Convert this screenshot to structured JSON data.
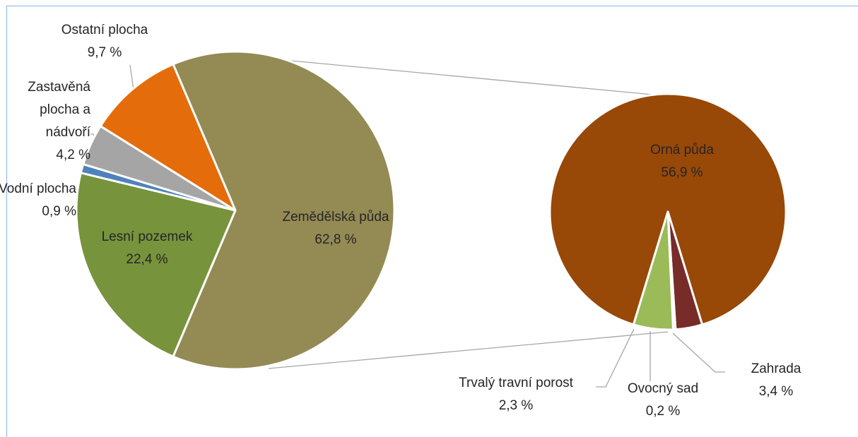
{
  "chart_data": [
    {
      "type": "pie",
      "categories": [
        "Zemědělská půda",
        "Lesní pozemek",
        "Vodní plocha",
        "Zastavěná plocha a nádvoří",
        "Ostatní plocha"
      ],
      "values": [
        62.8,
        22.4,
        0.9,
        4.2,
        9.7
      ],
      "value_labels": [
        "62,8 %",
        "22,4 %",
        "0,9 %",
        "4,2 %",
        "9,7 %"
      ],
      "colors": [
        "#948a54",
        "#77933c",
        "#4f81bd",
        "#a5a5a5",
        "#e46c0a"
      ]
    },
    {
      "type": "pie",
      "categories": [
        "Orná půda",
        "Trvalý travní porost",
        "Ovocný sad",
        "Zahrada"
      ],
      "values": [
        56.9,
        2.3,
        0.2,
        3.4
      ],
      "value_labels": [
        "56,9 %",
        "2,3 %",
        "0,2 %",
        "3,4 %"
      ],
      "colors": [
        "#984807",
        "#772c2a",
        "#4f6228",
        "#9bbb59"
      ]
    }
  ]
}
